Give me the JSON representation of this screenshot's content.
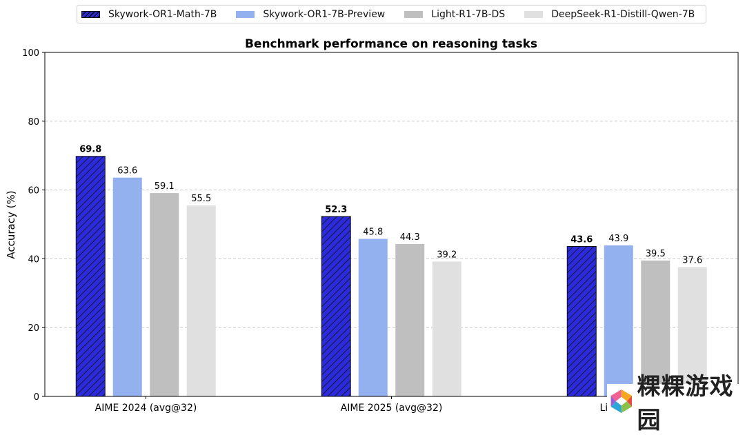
{
  "chart_data": {
    "type": "bar",
    "title": "Benchmark performance on reasoning tasks",
    "xlabel": "",
    "ylabel": "Accuracy (%)",
    "ylim": [
      0,
      100
    ],
    "yticks": [
      0,
      20,
      40,
      60,
      80,
      100
    ],
    "grid": "horizontal dashed",
    "legend_position": "top-center",
    "categories": [
      "AIME 2024 (avg@32)",
      "AIME 2025 (avg@32)",
      "LiveCodeBench"
    ],
    "series": [
      {
        "name": "Skywork-OR1-Math-7B",
        "values": [
          69.8,
          52.3,
          43.6
        ],
        "color": "#2b2bdc",
        "hatch": true,
        "label_bold": true
      },
      {
        "name": "Skywork-OR1-7B-Preview",
        "values": [
          63.6,
          45.8,
          43.9
        ],
        "color": "#93b1ef",
        "hatch": false,
        "label_bold": false
      },
      {
        "name": "Light-R1-7B-DS",
        "values": [
          59.1,
          44.3,
          39.5
        ],
        "color": "#bfbfbf",
        "hatch": false,
        "label_bold": false
      },
      {
        "name": "DeepSeek-R1-Distill-Qwen-7B",
        "values": [
          55.5,
          39.2,
          37.6
        ],
        "color": "#e0e0e0",
        "hatch": false,
        "label_bold": false
      }
    ]
  },
  "watermark": {
    "text": "粿粿游戏园"
  }
}
